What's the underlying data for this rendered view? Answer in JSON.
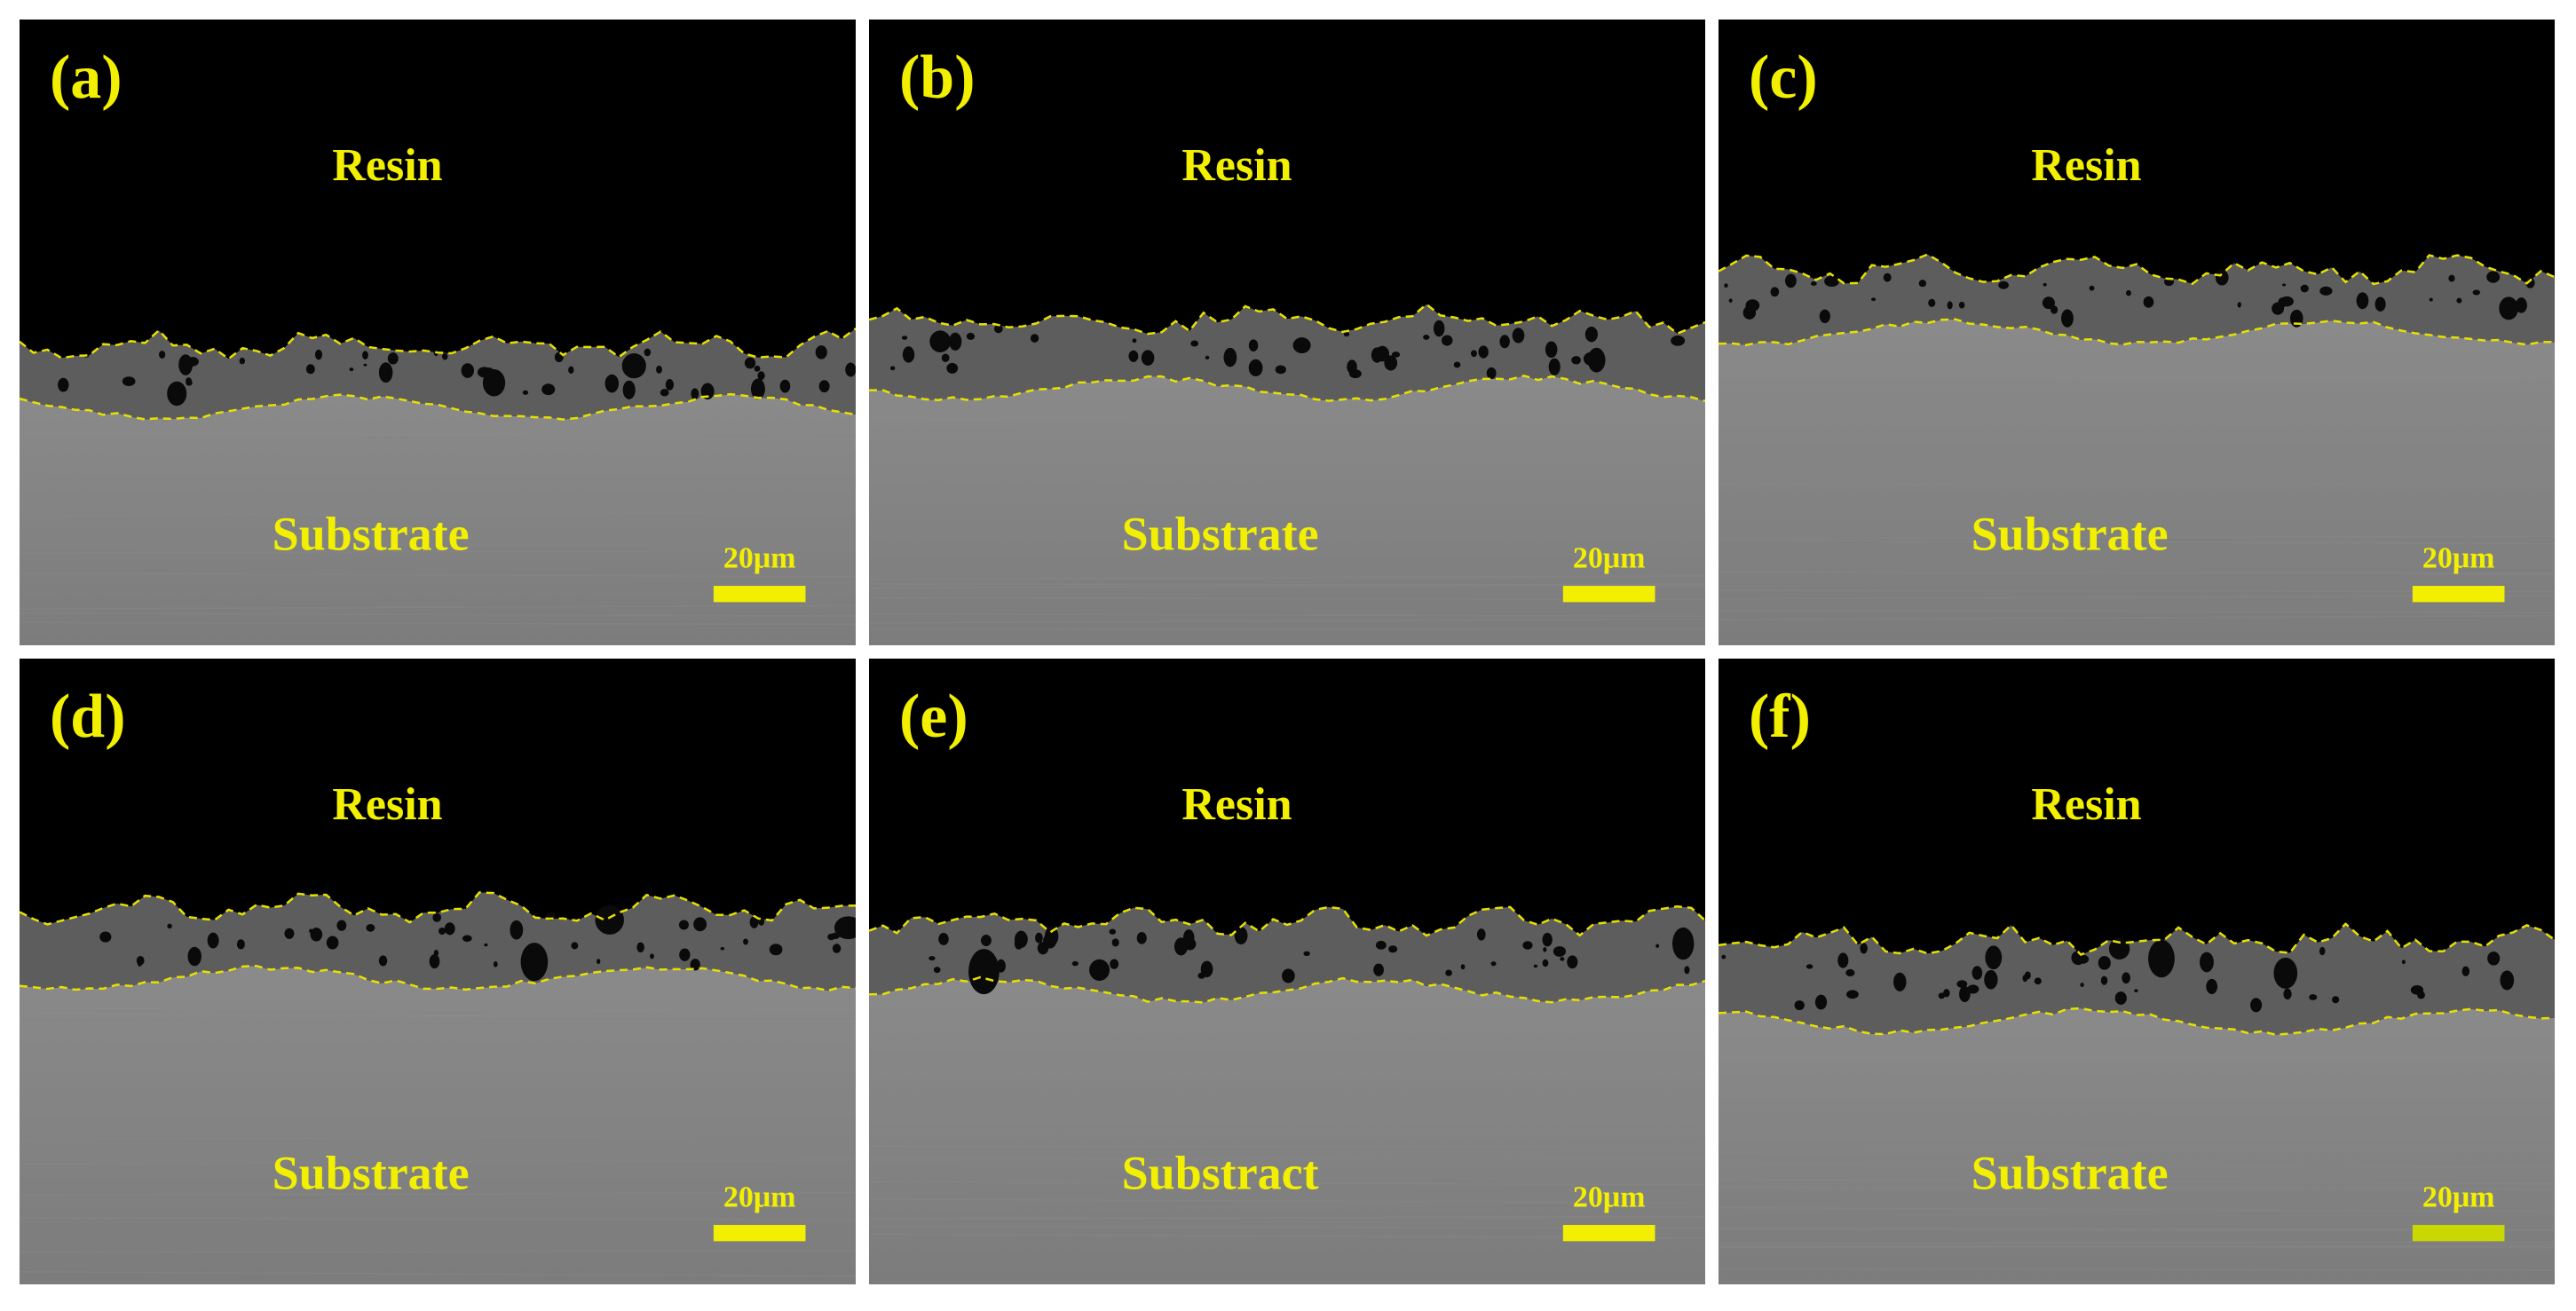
{
  "panels": [
    {
      "label": "(a)",
      "top": "Resin",
      "bottom": "Substrate",
      "scale": "20μm"
    },
    {
      "label": "(b)",
      "top": "Resin",
      "bottom": "Substrate",
      "scale": "20μm"
    },
    {
      "label": "(c)",
      "top": "Resin",
      "bottom": "Substrate",
      "scale": "20μm"
    },
    {
      "label": "(d)",
      "top": "Resin",
      "bottom": "Substrate",
      "scale": "20μm"
    },
    {
      "label": "(e)",
      "top": "Resin",
      "bottom": "Substract",
      "scale": "20μm"
    },
    {
      "label": "(f)",
      "top": "Resin",
      "bottom": "Substrate",
      "scale": "20μm"
    }
  ]
}
